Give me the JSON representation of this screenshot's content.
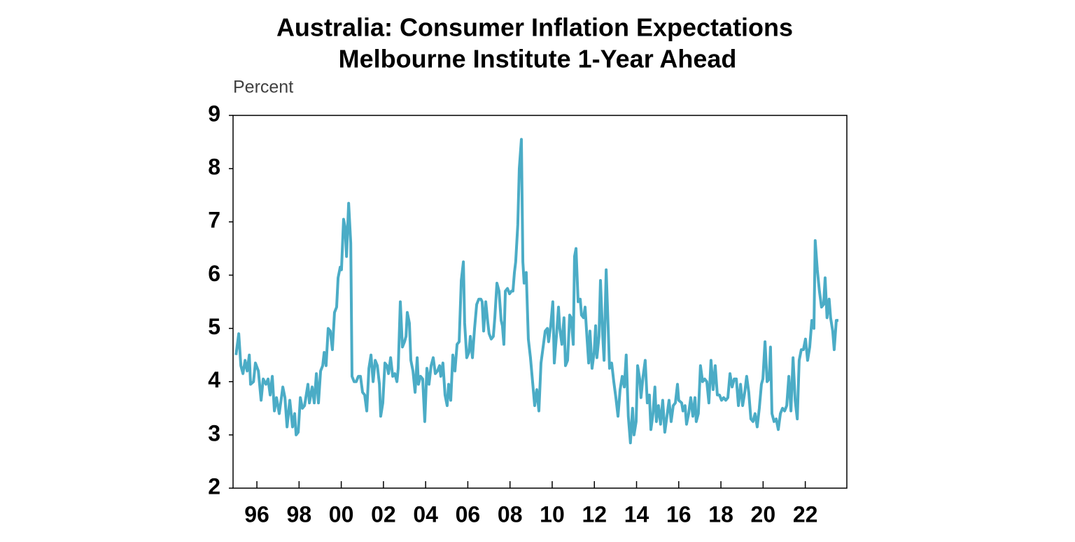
{
  "chart_data": {
    "type": "line",
    "title": "Australia: Consumer Inflation Expectations",
    "subtitle": "Melbourne Institute 1-Year Ahead",
    "y_label": "Percent",
    "color": "#4bacc6",
    "xlim": [
      1994.87,
      2023.97
    ],
    "ylim": [
      2,
      9
    ],
    "yticks": [
      2,
      3,
      4,
      5,
      6,
      7,
      8,
      9
    ],
    "xticks": [
      {
        "value": 1996,
        "label": "96"
      },
      {
        "value": 1998,
        "label": "98"
      },
      {
        "value": 2000,
        "label": "00"
      },
      {
        "value": 2002,
        "label": "02"
      },
      {
        "value": 2004,
        "label": "04"
      },
      {
        "value": 2006,
        "label": "06"
      },
      {
        "value": 2008,
        "label": "08"
      },
      {
        "value": 2010,
        "label": "10"
      },
      {
        "value": 2012,
        "label": "12"
      },
      {
        "value": 2014,
        "label": "14"
      },
      {
        "value": 2016,
        "label": "16"
      },
      {
        "value": 2018,
        "label": "18"
      },
      {
        "value": 2020,
        "label": "20"
      },
      {
        "value": 2022,
        "label": "22"
      }
    ],
    "x": [
      1995.01,
      1995.14,
      1995.24,
      1995.34,
      1995.44,
      1995.54,
      1995.64,
      1995.7,
      1995.84,
      1995.93,
      1996.07,
      1996.2,
      1996.3,
      1996.43,
      1996.53,
      1996.63,
      1996.73,
      1996.83,
      1996.93,
      1997.06,
      1997.23,
      1997.33,
      1997.43,
      1997.56,
      1997.69,
      1997.79,
      1997.86,
      1997.96,
      1998.06,
      1998.16,
      1998.26,
      1998.42,
      1998.49,
      1998.62,
      1998.72,
      1998.82,
      1998.92,
      1999.02,
      1999.12,
      1999.19,
      1999.28,
      1999.38,
      1999.48,
      1999.58,
      1999.68,
      1999.78,
      1999.85,
      1999.95,
      2000.01,
      2000.11,
      2000.18,
      2000.25,
      2000.35,
      2000.45,
      2000.51,
      2000.61,
      2000.71,
      2000.81,
      2000.91,
      2001.01,
      2001.11,
      2001.21,
      2001.31,
      2001.41,
      2001.51,
      2001.61,
      2001.71,
      2001.81,
      2001.87,
      2001.97,
      2002.07,
      2002.17,
      2002.24,
      2002.34,
      2002.44,
      2002.54,
      2002.64,
      2002.7,
      2002.8,
      2002.9,
      2003.0,
      2003.07,
      2003.13,
      2003.23,
      2003.3,
      2003.4,
      2003.5,
      2003.6,
      2003.66,
      2003.76,
      2003.86,
      2003.96,
      2004.06,
      2004.16,
      2004.26,
      2004.36,
      2004.46,
      2004.56,
      2004.66,
      2004.72,
      2004.82,
      2004.92,
      2005.02,
      2005.09,
      2005.19,
      2005.29,
      2005.39,
      2005.49,
      2005.59,
      2005.69,
      2005.79,
      2005.85,
      2005.95,
      2006.05,
      2006.12,
      2006.22,
      2006.32,
      2006.42,
      2006.52,
      2006.62,
      2006.68,
      2006.75,
      2006.85,
      2006.95,
      2007.01,
      2007.11,
      2007.21,
      2007.28,
      2007.38,
      2007.48,
      2007.58,
      2007.64,
      2007.71,
      2007.78,
      2007.88,
      2007.98,
      2008.07,
      2008.14,
      2008.21,
      2008.27,
      2008.37,
      2008.44,
      2008.54,
      2008.61,
      2008.67,
      2008.77,
      2008.87,
      2008.97,
      2009.07,
      2009.17,
      2009.27,
      2009.37,
      2009.47,
      2009.57,
      2009.67,
      2009.77,
      2009.83,
      2009.93,
      2010.03,
      2010.1,
      2010.2,
      2010.3,
      2010.36,
      2010.46,
      2010.56,
      2010.63,
      2010.73,
      2010.83,
      2010.9,
      2011.0,
      2011.06,
      2011.13,
      2011.23,
      2011.33,
      2011.39,
      2011.49,
      2011.56,
      2011.63,
      2011.73,
      2011.79,
      2011.89,
      2011.99,
      2012.06,
      2012.12,
      2012.22,
      2012.29,
      2012.39,
      2012.46,
      2012.56,
      2012.66,
      2012.72,
      2012.82,
      2012.92,
      2013.02,
      2013.12,
      2013.22,
      2013.32,
      2013.42,
      2013.51,
      2013.61,
      2013.71,
      2013.81,
      2013.88,
      2013.98,
      2014.05,
      2014.15,
      2014.21,
      2014.31,
      2014.41,
      2014.51,
      2014.61,
      2014.68,
      2014.78,
      2014.87,
      2014.94,
      2015.04,
      2015.14,
      2015.24,
      2015.34,
      2015.44,
      2015.54,
      2015.64,
      2015.74,
      2015.84,
      2015.94,
      2016.0,
      2016.14,
      2016.2,
      2016.3,
      2016.37,
      2016.47,
      2016.57,
      2016.67,
      2016.77,
      2016.83,
      2016.93,
      2017.03,
      2017.13,
      2017.23,
      2017.33,
      2017.43,
      2017.53,
      2017.63,
      2017.73,
      2017.83,
      2017.93,
      2018.03,
      2018.13,
      2018.23,
      2018.33,
      2018.43,
      2018.53,
      2018.63,
      2018.73,
      2018.83,
      2018.93,
      2019.03,
      2019.13,
      2019.22,
      2019.32,
      2019.42,
      2019.52,
      2019.62,
      2019.72,
      2019.82,
      2019.92,
      2019.99,
      2020.09,
      2020.19,
      2020.29,
      2020.35,
      2020.42,
      2020.52,
      2020.62,
      2020.72,
      2020.82,
      2020.92,
      2021.02,
      2021.12,
      2021.22,
      2021.32,
      2021.42,
      2021.52,
      2021.62,
      2021.71,
      2021.81,
      2021.91,
      2022.01,
      2022.11,
      2022.21,
      2022.31,
      2022.41,
      2022.47,
      2022.57,
      2022.67,
      2022.77,
      2022.87,
      2022.94,
      2023.03,
      2023.13,
      2023.2,
      2023.3,
      2023.37,
      2023.47,
      2023.57
    ],
    "values": [
      4.5,
      4.9,
      4.3,
      4.15,
      4.4,
      4.2,
      4.5,
      3.95,
      4.0,
      4.35,
      4.2,
      3.65,
      4.05,
      3.95,
      4.05,
      3.75,
      4.1,
      3.45,
      3.7,
      3.4,
      3.9,
      3.7,
      3.15,
      3.65,
      3.15,
      3.4,
      3.0,
      3.05,
      3.7,
      3.5,
      3.55,
      3.95,
      3.6,
      3.9,
      3.6,
      4.15,
      3.6,
      4.2,
      4.3,
      4.55,
      4.3,
      5.0,
      4.95,
      4.6,
      5.3,
      5.4,
      5.95,
      6.15,
      6.1,
      7.05,
      6.9,
      6.35,
      7.35,
      6.6,
      4.1,
      4.0,
      4.0,
      4.1,
      4.1,
      3.8,
      3.75,
      3.45,
      4.25,
      4.5,
      4.0,
      4.4,
      4.3,
      3.95,
      3.35,
      3.6,
      4.35,
      4.3,
      4.15,
      4.45,
      4.1,
      4.15,
      4.0,
      4.25,
      5.5,
      4.65,
      4.75,
      4.85,
      5.3,
      5.1,
      4.4,
      4.2,
      3.8,
      4.45,
      3.95,
      4.1,
      4.05,
      3.25,
      4.25,
      3.95,
      4.3,
      4.45,
      4.15,
      4.2,
      4.3,
      4.1,
      4.35,
      3.75,
      3.55,
      3.95,
      3.65,
      4.5,
      4.2,
      4.7,
      4.75,
      5.9,
      6.25,
      5.1,
      4.45,
      4.55,
      4.85,
      4.45,
      5.0,
      5.45,
      5.55,
      5.55,
      5.5,
      4.95,
      5.5,
      5.1,
      4.9,
      4.8,
      4.85,
      5.2,
      5.85,
      5.7,
      5.15,
      5.05,
      4.7,
      5.7,
      5.75,
      5.65,
      5.7,
      5.7,
      6.05,
      6.25,
      6.95,
      8.0,
      8.55,
      6.25,
      5.85,
      6.05,
      4.8,
      4.45,
      4.0,
      3.55,
      3.85,
      3.45,
      4.35,
      4.65,
      4.95,
      5.0,
      4.75,
      5.05,
      5.5,
      4.35,
      4.85,
      5.4,
      5.0,
      4.7,
      5.2,
      4.3,
      4.4,
      5.25,
      5.2,
      4.7,
      6.35,
      6.5,
      5.5,
      5.55,
      5.25,
      5.2,
      5.4,
      4.95,
      4.35,
      4.95,
      4.25,
      4.55,
      5.05,
      4.45,
      4.85,
      5.9,
      4.9,
      4.4,
      6.1,
      4.95,
      4.25,
      4.35,
      4.0,
      3.7,
      3.35,
      3.85,
      4.1,
      3.9,
      4.5,
      3.35,
      2.85,
      3.5,
      3.0,
      3.25,
      4.3,
      4.05,
      3.7,
      4.1,
      4.4,
      3.6,
      3.75,
      3.1,
      3.4,
      3.9,
      3.25,
      3.55,
      3.2,
      3.65,
      3.05,
      3.35,
      3.65,
      3.25,
      3.55,
      3.6,
      3.95,
      3.65,
      3.6,
      3.45,
      3.55,
      3.2,
      3.4,
      3.7,
      3.35,
      3.7,
      3.25,
      3.4,
      4.3,
      4.0,
      4.05,
      4.0,
      3.6,
      4.4,
      3.85,
      4.3,
      3.75,
      3.75,
      3.65,
      3.7,
      3.65,
      3.7,
      4.15,
      3.9,
      4.05,
      4.05,
      3.55,
      3.95,
      3.55,
      3.8,
      4.1,
      3.8,
      3.3,
      3.25,
      3.4,
      3.15,
      3.5,
      3.95,
      4.05,
      4.75,
      4.0,
      4.05,
      4.65,
      3.4,
      3.25,
      3.3,
      3.1,
      3.4,
      3.5,
      3.45,
      3.55,
      4.1,
      3.45,
      4.45,
      3.65,
      3.3,
      4.4,
      4.6,
      4.6,
      4.8,
      4.4,
      4.65,
      5.15,
      5.0,
      6.65,
      6.1,
      5.7,
      5.4,
      5.45,
      5.95,
      5.2,
      5.55,
      5.2,
      4.95,
      4.6,
      5.15,
      5.15
    ]
  }
}
